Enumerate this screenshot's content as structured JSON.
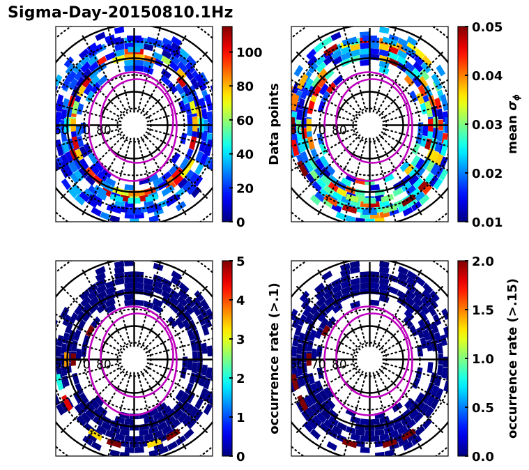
{
  "title": "Sigma-Day-20150810.1Hz",
  "chart_data": [
    {
      "type": "polar-heatmap",
      "panel": "top-left",
      "colormap": "jet",
      "colorbar": {
        "label": "Data points",
        "range": [
          0,
          115
        ],
        "ticks": [
          0,
          20,
          40,
          60,
          80,
          100
        ],
        "tick_labels": [
          "0",
          "20",
          "40",
          "60",
          "80",
          "100"
        ]
      },
      "lat_labels": [
        "60",
        "70",
        "80"
      ],
      "rings_solid_mlat": [
        60,
        70,
        80
      ],
      "description": "MLAT-MLT grid cells of data point counts; mostly 5-60, bands of 60-110 near 70-75 MLAT",
      "cells": [
        {
          "mlt": 0,
          "mlat": 66,
          "v": 20
        },
        {
          "mlt": 1,
          "mlat": 66,
          "v": 15
        },
        {
          "mlt": 2,
          "mlat": 66,
          "v": 10
        },
        {
          "mlt": 22,
          "mlat": 66,
          "v": 12
        },
        {
          "mlt": 23,
          "mlat": 66,
          "v": 18
        },
        {
          "mlt": 0,
          "mlat": 69,
          "v": 45
        },
        {
          "mlt": 1,
          "mlat": 69,
          "v": 40
        },
        {
          "mlt": 23,
          "mlat": 69,
          "v": 40
        },
        {
          "mlt": 2,
          "mlat": 69,
          "v": 30
        },
        {
          "mlt": 22,
          "mlat": 69,
          "v": 30
        },
        {
          "mlt": 0,
          "mlat": 71,
          "v": 85
        },
        {
          "mlt": 23,
          "mlat": 71,
          "v": 95
        },
        {
          "mlt": 1,
          "mlat": 71,
          "v": 70
        },
        {
          "mlt": 21,
          "mlat": 71,
          "v": 100
        },
        {
          "mlt": 4,
          "mlat": 66,
          "v": 10
        },
        {
          "mlt": 5,
          "mlat": 66,
          "v": 8
        },
        {
          "mlt": 6,
          "mlat": 66,
          "v": 15
        },
        {
          "mlt": 7,
          "mlat": 66,
          "v": 12
        },
        {
          "mlt": 8,
          "mlat": 66,
          "v": 20
        },
        {
          "mlt": 6,
          "mlat": 69,
          "v": 40
        },
        {
          "mlt": 6,
          "mlat": 71,
          "v": 80
        },
        {
          "mlt": 5,
          "mlat": 71,
          "v": 105
        },
        {
          "mlt": 7,
          "mlat": 71,
          "v": 60
        },
        {
          "mlt": 10,
          "mlat": 66,
          "v": 15
        },
        {
          "mlt": 11,
          "mlat": 66,
          "v": 10
        },
        {
          "mlt": 12,
          "mlat": 66,
          "v": 12
        },
        {
          "mlt": 13,
          "mlat": 66,
          "v": 20
        },
        {
          "mlt": 14,
          "mlat": 66,
          "v": 10
        },
        {
          "mlt": 12,
          "mlat": 69,
          "v": 35
        },
        {
          "mlt": 12,
          "mlat": 71,
          "v": 80
        },
        {
          "mlt": 11,
          "mlat": 71,
          "v": 70
        },
        {
          "mlt": 13,
          "mlat": 71,
          "v": 90
        },
        {
          "mlt": 16,
          "mlat": 66,
          "v": 12
        },
        {
          "mlt": 17,
          "mlat": 66,
          "v": 15
        },
        {
          "mlt": 18,
          "mlat": 66,
          "v": 20
        },
        {
          "mlt": 19,
          "mlat": 66,
          "v": 10
        },
        {
          "mlt": 18,
          "mlat": 69,
          "v": 40
        },
        {
          "mlt": 18,
          "mlat": 71,
          "v": 80
        },
        {
          "mlt": 17,
          "mlat": 71,
          "v": 70
        },
        {
          "mlt": 19,
          "mlat": 71,
          "v": 105
        }
      ]
    },
    {
      "type": "polar-heatmap",
      "panel": "top-right",
      "colormap": "jet",
      "colorbar": {
        "label": "mean σφ",
        "range": [
          0.01,
          0.05
        ],
        "ticks": [
          0.01,
          0.02,
          0.03,
          0.04,
          0.05
        ],
        "tick_labels": [
          "0.01",
          "0.02",
          "0.03",
          "0.04",
          "0.05"
        ]
      },
      "lat_labels": [
        "60",
        "70",
        "80"
      ],
      "rings_solid_mlat": [
        60,
        70,
        80
      ],
      "description": "mean sigma-phi; mostly 0.015-0.03, elevated 0.04-0.05 on dawn side and near midnight",
      "cells": [
        {
          "mlt": 0,
          "mlat": 66,
          "v": 0.02
        },
        {
          "mlt": 1,
          "mlat": 66,
          "v": 0.048
        },
        {
          "mlt": 2,
          "mlat": 66,
          "v": 0.042
        },
        {
          "mlt": 23,
          "mlat": 66,
          "v": 0.03
        },
        {
          "mlt": 22,
          "mlat": 66,
          "v": 0.05
        },
        {
          "mlt": 0,
          "mlat": 69,
          "v": 0.028
        },
        {
          "mlt": 1,
          "mlat": 69,
          "v": 0.032
        },
        {
          "mlt": 23,
          "mlat": 69,
          "v": 0.03
        },
        {
          "mlt": 4,
          "mlat": 66,
          "v": 0.05
        },
        {
          "mlt": 5,
          "mlat": 66,
          "v": 0.045
        },
        {
          "mlt": 6,
          "mlat": 66,
          "v": 0.05
        },
        {
          "mlt": 7,
          "mlat": 66,
          "v": 0.04
        },
        {
          "mlt": 8,
          "mlat": 66,
          "v": 0.038
        },
        {
          "mlt": 5,
          "mlat": 71,
          "v": 0.04
        },
        {
          "mlt": 6,
          "mlat": 71,
          "v": 0.037
        },
        {
          "mlt": 7,
          "mlat": 71,
          "v": 0.045
        },
        {
          "mlt": 10,
          "mlat": 66,
          "v": 0.048
        },
        {
          "mlt": 11,
          "mlat": 66,
          "v": 0.02
        },
        {
          "mlt": 12,
          "mlat": 66,
          "v": 0.017
        },
        {
          "mlt": 13,
          "mlat": 66,
          "v": 0.022
        },
        {
          "mlt": 14,
          "mlat": 66,
          "v": 0.02
        },
        {
          "mlt": 16,
          "mlat": 66,
          "v": 0.022
        },
        {
          "mlt": 17,
          "mlat": 66,
          "v": 0.02
        },
        {
          "mlt": 18,
          "mlat": 66,
          "v": 0.018
        },
        {
          "mlt": 19,
          "mlat": 66,
          "v": 0.025
        },
        {
          "mlt": 18,
          "mlat": 71,
          "v": 0.045
        },
        {
          "mlt": 17,
          "mlat": 71,
          "v": 0.032
        }
      ]
    },
    {
      "type": "polar-heatmap",
      "panel": "bottom-left",
      "colormap": "jet",
      "colorbar": {
        "label": "occurrence rate (>.1)",
        "range": [
          0,
          5
        ],
        "ticks": [
          0,
          1,
          2,
          3,
          4,
          5
        ],
        "tick_labels": [
          "0",
          "1",
          "2",
          "3",
          "4",
          "5"
        ]
      },
      "lat_labels": [
        "60",
        "70",
        "80"
      ],
      "rings_solid_mlat": [
        60,
        70,
        80
      ],
      "description": "occurrence rate of sigma-phi > 0.1; mostly ~0, a few cells 2-5 on dawn/midnight side",
      "cells": [
        {
          "mlt": 1,
          "mlat": 66,
          "v": 5
        },
        {
          "mlt": 2,
          "mlat": 66,
          "v": 3.3
        },
        {
          "mlt": 23,
          "mlat": 66,
          "v": 3.3
        },
        {
          "mlt": 22,
          "mlat": 66,
          "v": 5
        },
        {
          "mlt": 4,
          "mlat": 66,
          "v": 4.5
        },
        {
          "mlt": 5,
          "mlat": 66,
          "v": 2
        },
        {
          "mlt": 6,
          "mlat": 69,
          "v": 3.6
        },
        {
          "mlt": 6,
          "mlat": 71,
          "v": 5
        },
        {
          "mlt": 8,
          "mlat": 74,
          "v": 5
        }
      ]
    },
    {
      "type": "polar-heatmap",
      "panel": "bottom-right",
      "colormap": "jet",
      "colorbar": {
        "label": "occurrence rate (>.15)",
        "range": [
          0.0,
          2.0
        ],
        "ticks": [
          0.0,
          0.5,
          1.0,
          1.5,
          2.0
        ],
        "tick_labels": [
          "0.0",
          "0.5",
          "1.0",
          "1.5",
          "2.0"
        ]
      },
      "lat_labels": [
        "60",
        "70",
        "80"
      ],
      "rings_solid_mlat": [
        60,
        70,
        80
      ],
      "description": "occurrence rate of sigma-phi > 0.15; mostly 0, a few cells at 2.0",
      "cells": [
        {
          "mlt": 1,
          "mlat": 66,
          "v": 2
        },
        {
          "mlt": 22,
          "mlat": 66,
          "v": 2
        },
        {
          "mlt": 23,
          "mlat": 66,
          "v": 2
        },
        {
          "mlt": 4,
          "mlat": 66,
          "v": 2
        },
        {
          "mlt": 5,
          "mlat": 66,
          "v": 2
        },
        {
          "mlt": 8,
          "mlat": 74,
          "v": 2
        },
        {
          "mlt": 6,
          "mlat": 71,
          "v": 2
        }
      ]
    }
  ]
}
